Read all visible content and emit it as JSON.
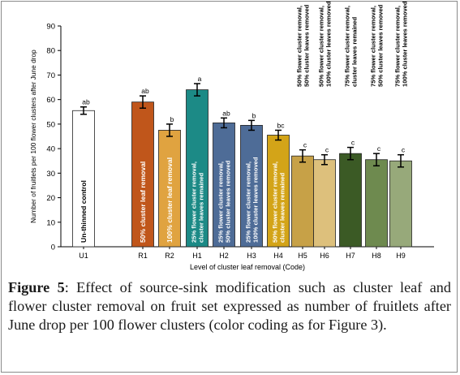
{
  "chart_data": {
    "type": "bar",
    "xlabel": "Level of cluster leaf removal (Code)",
    "ylabel": "Number of fruitlets per 100 flower clusters after June drop",
    "ylim": [
      0,
      90
    ],
    "yticks": [
      0,
      10,
      20,
      30,
      40,
      50,
      60,
      70,
      80,
      90
    ],
    "grid": false,
    "categories": [
      "U1",
      "R1",
      "R2",
      "H1",
      "H2",
      "H3",
      "H4",
      "H5",
      "H6",
      "H7",
      "H8",
      "H9"
    ],
    "values": [
      55.5,
      59,
      47.5,
      64,
      50.5,
      49.5,
      45.5,
      37,
      35.5,
      38,
      35.5,
      35
    ],
    "errors": [
      1.5,
      2.5,
      2.5,
      2.5,
      2,
      2,
      2,
      2.5,
      2,
      2.5,
      2.5,
      2.5
    ],
    "letters": [
      "ab",
      "ab",
      "b",
      "a",
      "ab",
      "b",
      "bc",
      "c",
      "c",
      "c",
      "c",
      "c"
    ],
    "bar_labels": [
      [
        "Un-thinned control"
      ],
      [
        "50% cluster leaf removal"
      ],
      [
        "100% cluster leaf removal"
      ],
      [
        "25% flower cluster removal,",
        "cluster leaves remained"
      ],
      [
        "25% flower cluster removal,",
        "50% cluster leaves removed"
      ],
      [
        "25% flower cluster removal,",
        "100% cluster leaves removed"
      ],
      [
        "50% flower cluster removal,",
        "cluster leaves remained"
      ],
      [
        "50% flower cluster removal,",
        "50% cluster leaves removed"
      ],
      [
        "50% flower cluster removal,",
        "100% cluster leaves removed"
      ],
      [
        "75% flower cluster removal,",
        "cluster leaves remained"
      ],
      [
        "75% flower cluster removal,",
        "50% cluster leaves removed"
      ],
      [
        "75% flower cluster removal,",
        "100% cluster leaves removed"
      ]
    ],
    "colors": [
      "#ffffff",
      "#c0561b",
      "#e0a340",
      "#1c8a86",
      "#4e6c97",
      "#4e6c97",
      "#d3a418",
      "#c7a147",
      "#ddc07c",
      "#3b5a25",
      "#6e8a4f",
      "#97a97a"
    ],
    "label_colors": [
      "#000000",
      "#ffffff",
      "#ffffff",
      "#ffffff",
      "#ffffff",
      "#ffffff",
      "#ffffff",
      "#000000",
      "#000000",
      "#000000",
      "#000000",
      "#000000"
    ]
  },
  "caption": {
    "figure_label": "Figure 5",
    "text": ": Effect of source-sink modification such as cluster leaf and flower cluster removal on fruit set expressed as number of fruitlets after June drop per 100 flower clusters (color coding as for Figure 3)."
  }
}
